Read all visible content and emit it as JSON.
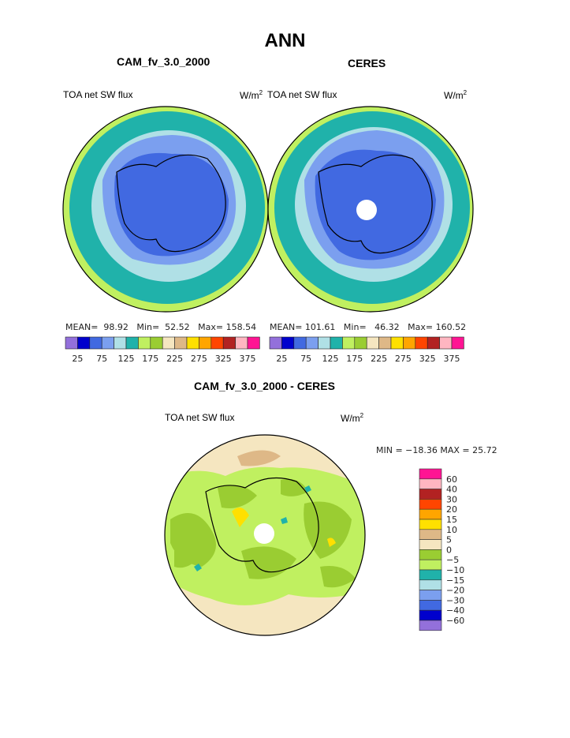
{
  "title": "ANN",
  "panels": [
    {
      "subtitle": "CAM_fv_3.0_2000",
      "left_label": "TOA net SW flux",
      "units": "W/m",
      "units_sup": "2",
      "stats": {
        "mean_label": "MEAN=",
        "mean": "98.92",
        "min_label": "Min=",
        "min": "52.52",
        "max_label": "Max=",
        "max": "158.54"
      }
    },
    {
      "subtitle": "CERES",
      "left_label": "TOA net SW flux",
      "units": "W/m",
      "units_sup": "2",
      "stats": {
        "mean_label": "MEAN=",
        "mean": "101.61",
        "min_label": "Min=",
        "min": "46.32",
        "max_label": "Max=",
        "max": "160.52"
      }
    }
  ],
  "diff": {
    "subtitle": "CAM_fv_3.0_2000 - CERES",
    "left_label": "TOA net SW flux",
    "units": "W/m",
    "units_sup": "2",
    "minmax": "MIN = −18.36 MAX =   25.72"
  },
  "colorbar_top": {
    "colors": [
      "#9370DB",
      "#0000CD",
      "#4169E1",
      "#7B9FEF",
      "#B0E0E6",
      "#20B2AA",
      "#C0F060",
      "#9ACD32",
      "#F5E6C0",
      "#DEB887",
      "#FFE000",
      "#FFA500",
      "#FF4500",
      "#B22222",
      "#FFB6C1",
      "#FF1493"
    ],
    "labels": [
      "25",
      "75",
      "125",
      "175",
      "225",
      "275",
      "325",
      "375"
    ]
  },
  "colorbar_diff": {
    "colors": [
      "#FF1493",
      "#FFB6C1",
      "#B22222",
      "#FF4500",
      "#FFA500",
      "#FFE000",
      "#DEB887",
      "#F5E6C0",
      "#9ACD32",
      "#C0F060",
      "#20B2AA",
      "#B0E0E6",
      "#7B9FEF",
      "#4169E1",
      "#0000CD",
      "#9370DB"
    ],
    "labels": [
      "60",
      "40",
      "30",
      "20",
      "15",
      "10",
      "5",
      "0",
      "−5",
      "−10",
      "−15",
      "−20",
      "−30",
      "−40",
      "−60"
    ]
  }
}
